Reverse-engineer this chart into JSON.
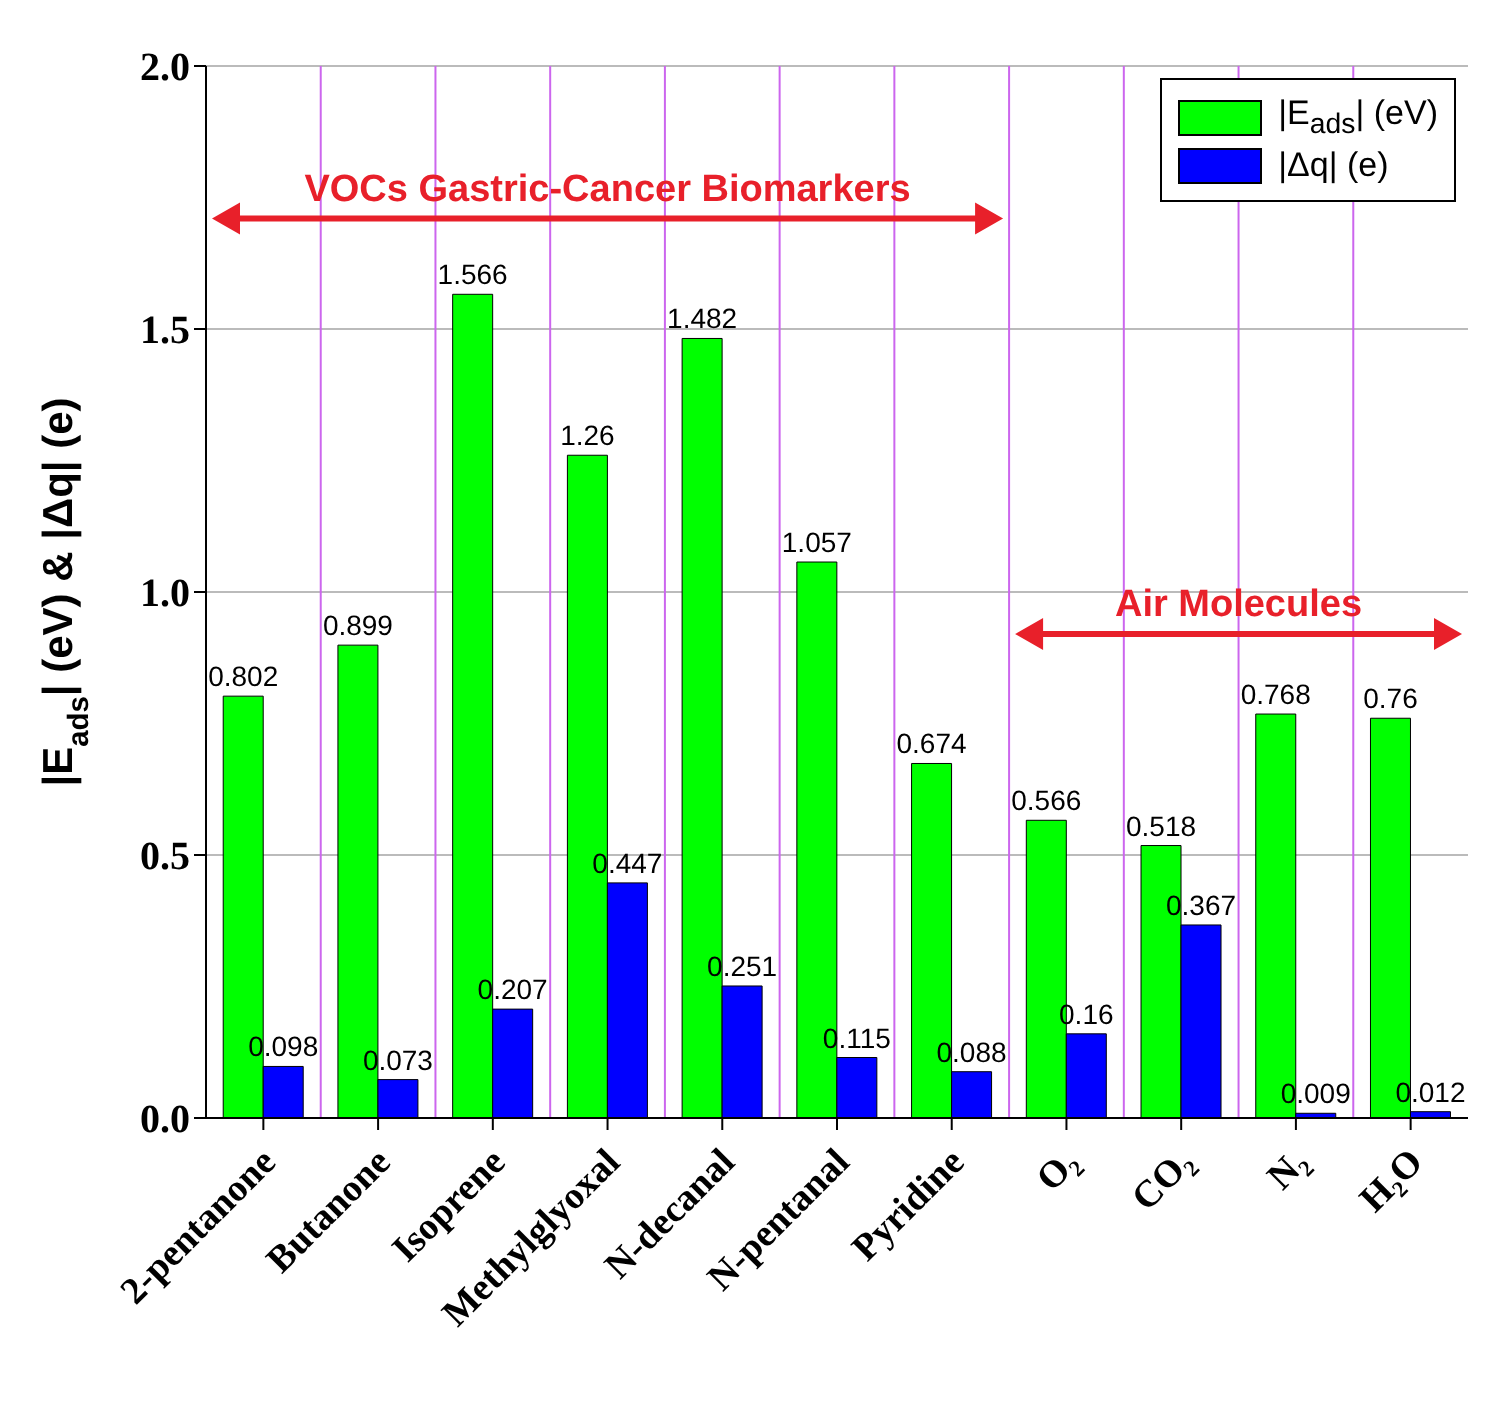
{
  "chart_data": {
    "type": "bar",
    "ylabel": "|E$_{ads}$| (eV) & |Δq| (e)",
    "categories": [
      "2-pentanone",
      "Butanone",
      "Isoprene",
      "Methylglyoxal",
      "N-decanal",
      "N-pentanal",
      "Pyridine",
      "O₂",
      "CO₂",
      "N₂",
      "H₂O"
    ],
    "series": [
      {
        "name": "|E$_{ads}$| (eV)",
        "color": "#00ff00",
        "values": [
          0.802,
          0.899,
          1.566,
          1.26,
          1.482,
          1.057,
          0.674,
          0.566,
          0.518,
          0.768,
          0.76
        ]
      },
      {
        "name": "|Δq| (e)",
        "color": "#0000ff",
        "values": [
          0.098,
          0.073,
          0.207,
          0.447,
          0.251,
          0.115,
          0.088,
          0.16,
          0.367,
          0.009,
          0.012
        ]
      }
    ],
    "ylim": [
      0,
      2
    ],
    "yticks": [
      {
        "value": 0,
        "label": "0.0"
      },
      {
        "value": 0.5,
        "label": "0.5"
      },
      {
        "value": 1,
        "label": "1.0"
      },
      {
        "value": 1.5,
        "label": "1.5"
      },
      {
        "value": 2,
        "label": "2.0"
      }
    ],
    "grid": true,
    "legend": "top right",
    "data_labels": true,
    "annotations": [
      "VOCs Gastric-Cancer Biomarkers",
      "Air Molecules"
    ]
  }
}
